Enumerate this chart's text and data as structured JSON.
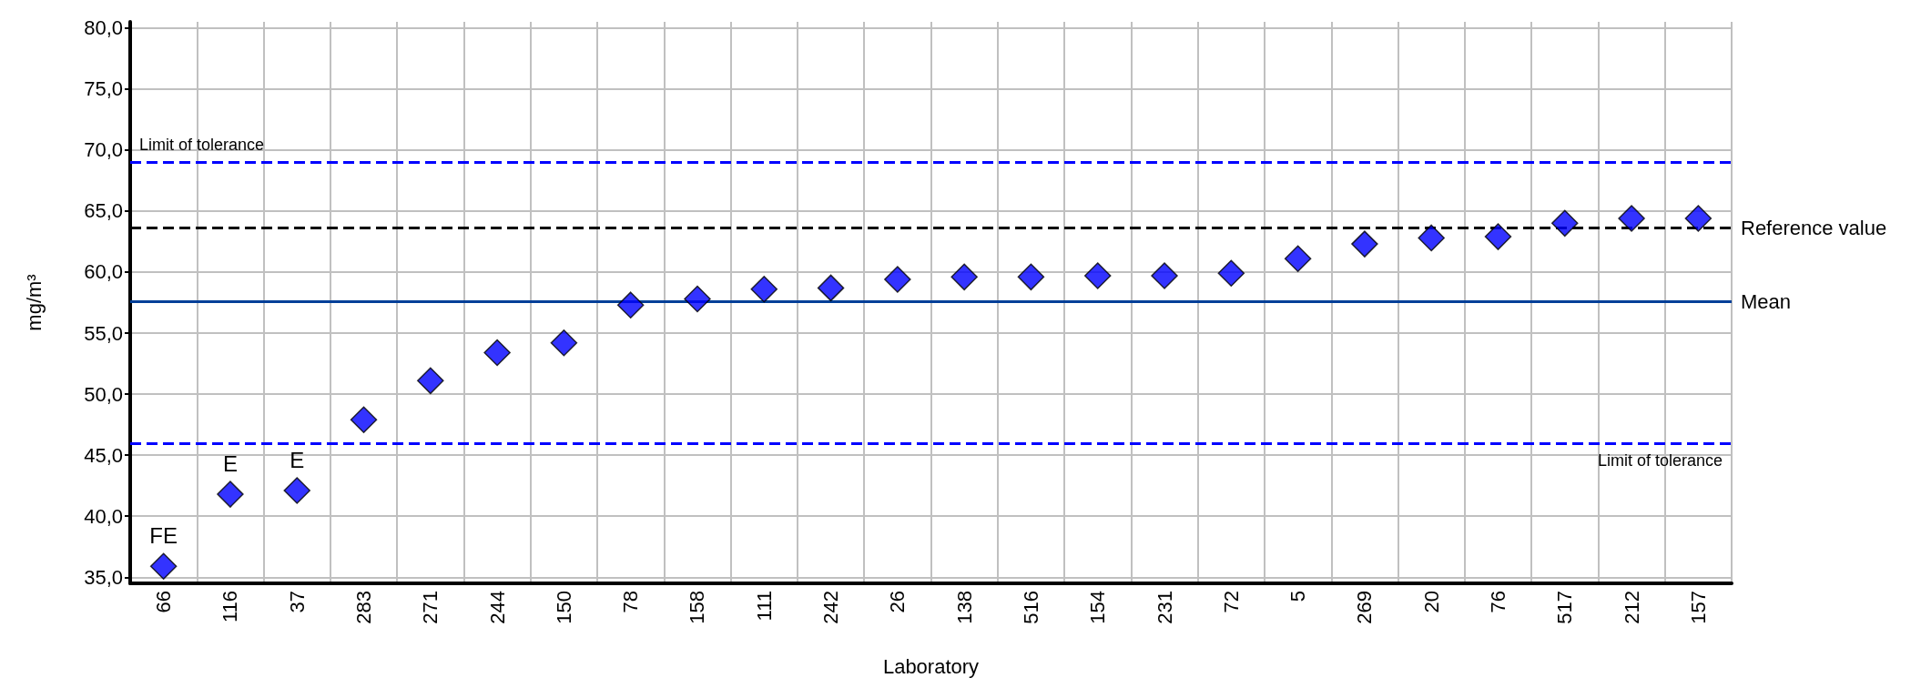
{
  "chart_data": {
    "type": "scatter",
    "xlabel": "Laboratory",
    "ylabel": "mg/m³",
    "categories": [
      "66",
      "116",
      "37",
      "283",
      "271",
      "244",
      "150",
      "78",
      "158",
      "111",
      "242",
      "26",
      "138",
      "516",
      "154",
      "231",
      "72",
      "5",
      "269",
      "20",
      "76",
      "517",
      "212",
      "157"
    ],
    "series": [
      {
        "color": "#0000ff",
        "values": [
          35.9,
          41.8,
          42.1,
          47.9,
          51.1,
          53.4,
          54.2,
          57.3,
          57.8,
          58.6,
          58.7,
          59.4,
          59.6,
          59.6,
          59.7,
          59.7,
          59.9,
          61.1,
          62.3,
          62.8,
          62.9,
          64.0,
          64.4,
          64.4
        ]
      }
    ],
    "marker": "diamond",
    "grid": true,
    "ylim": [
      34.5,
      80.5
    ],
    "yticks": [
      {
        "value": 35,
        "label": "35,0"
      },
      {
        "value": 40,
        "label": "40,0"
      },
      {
        "value": 45,
        "label": "45,0"
      },
      {
        "value": 50,
        "label": "50,0"
      },
      {
        "value": 55,
        "label": "55,0"
      },
      {
        "value": 60,
        "label": "60,0"
      },
      {
        "value": 65,
        "label": "65,0"
      },
      {
        "value": 70,
        "label": "70,0"
      },
      {
        "value": 75,
        "label": "75,0"
      },
      {
        "value": 80,
        "label": "80,0"
      }
    ],
    "ref_lines": [
      {
        "axis": "y",
        "value": 69.0,
        "label": "Limit of tolerance",
        "color": "#0000ff",
        "line_style": "dashed"
      },
      {
        "axis": "y",
        "value": 46.0,
        "label": "Limit of tolerance",
        "color": "#0000ff",
        "line_style": "dashed"
      },
      {
        "axis": "y",
        "value": 63.6,
        "label": "Reference value",
        "color": "#000000",
        "line_style": "dashed"
      },
      {
        "axis": "y",
        "value": 57.6,
        "label": "Mean",
        "color": "#003f98",
        "line_style": "solid"
      }
    ],
    "annotations": [
      {
        "text": "FE",
        "x": "66",
        "y": 35.9
      },
      {
        "text": "E",
        "x": "116",
        "y": 41.8
      },
      {
        "text": "E",
        "x": "37",
        "y": 42.1
      }
    ]
  }
}
